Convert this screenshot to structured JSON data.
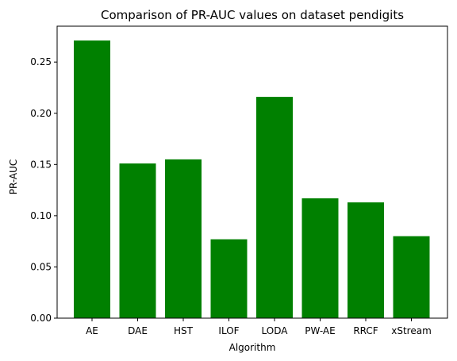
{
  "chart_data": {
    "type": "bar",
    "title": "Comparison of PR-AUC values on dataset pendigits",
    "xlabel": "Algorithm",
    "ylabel": "PR-AUC",
    "categories": [
      "AE",
      "DAE",
      "HST",
      "ILOF",
      "LODA",
      "PW-AE",
      "RRCF",
      "xStream"
    ],
    "values": [
      0.271,
      0.151,
      0.155,
      0.077,
      0.216,
      0.117,
      0.113,
      0.08
    ],
    "ylim": [
      0,
      0.285
    ],
    "yticks": [
      0.0,
      0.05,
      0.1,
      0.15,
      0.2,
      0.25
    ],
    "ytick_labels": [
      "0.00",
      "0.05",
      "0.10",
      "0.15",
      "0.20",
      "0.25"
    ],
    "grid": false,
    "bar_color": "#008000"
  }
}
